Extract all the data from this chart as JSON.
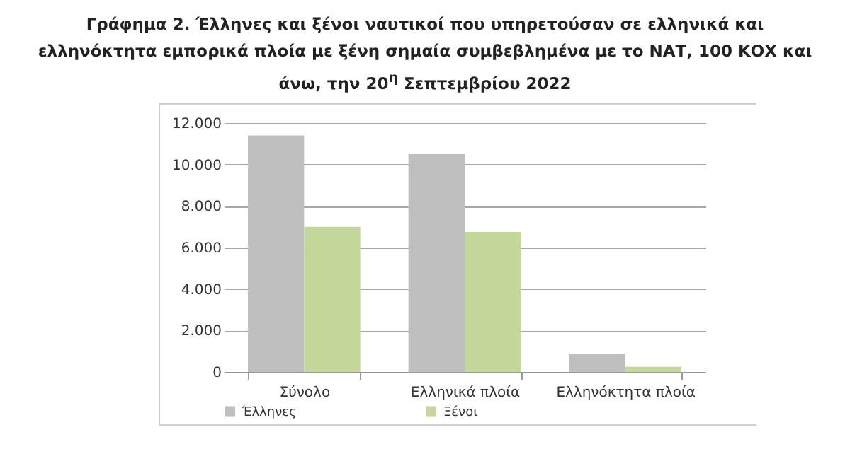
{
  "chart_data": {
    "type": "bar",
    "title": "Γράφημα 2. Έλληνες και ξένοι ναυτικοί που υπηρετούσαν σε ελληνικά και ελληνόκτητα εμπορικά πλοία με ξένη σημαία συμβεβλημένα με το ΝΑΤ, 100 ΚΟΧ και άνω, την 20$^{η}$ Σεπτεμβρίου 2022",
    "categories": [
      "Σύνολο",
      "Ελληνικά πλοία",
      "Ελληνόκτητα πλοία"
    ],
    "series": [
      {
        "name": "Έλληνες",
        "color": "#bfbfbf",
        "values": [
          11400,
          10500,
          870
        ]
      },
      {
        "name": "Ξένοι",
        "color": "#c4d79b",
        "values": [
          7000,
          6750,
          250
        ]
      }
    ],
    "ylim": [
      0,
      12000
    ],
    "yticks": [
      {
        "value": 0,
        "label": "0"
      },
      {
        "value": 2000,
        "label": "2.000"
      },
      {
        "value": 4000,
        "label": "4.000"
      },
      {
        "value": 6000,
        "label": "6.000"
      },
      {
        "value": 8000,
        "label": "8.000"
      },
      {
        "value": 10000,
        "label": "10.000"
      },
      {
        "value": 12000,
        "label": "12.000"
      }
    ],
    "grid": "y",
    "legend": "bottom"
  }
}
